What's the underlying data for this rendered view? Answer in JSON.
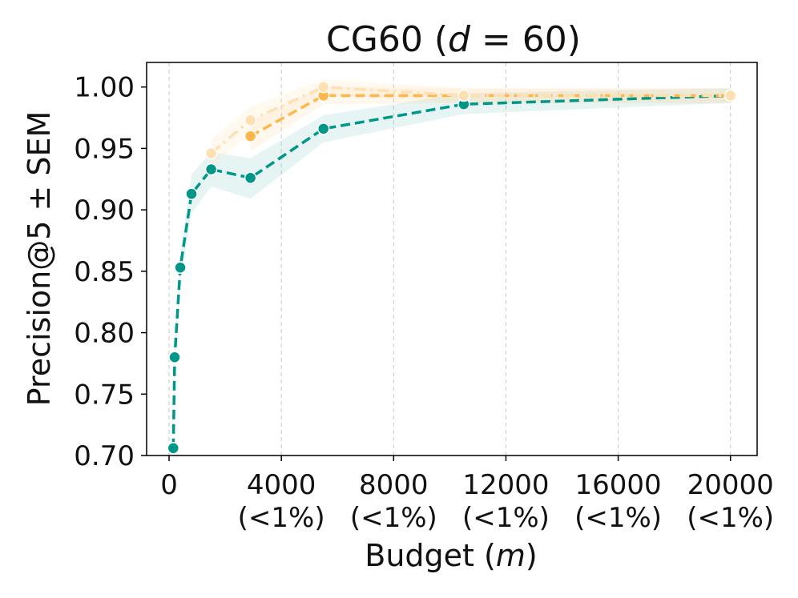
{
  "chart_data": {
    "type": "line",
    "title_prefix": "CG60 (",
    "title_var": "d",
    "title_suffix": " = 60)",
    "xlabel_prefix": "Budget (",
    "xlabel_var": "m",
    "xlabel_suffix": ")",
    "ylabel": "Precision@5 ± SEM",
    "xlim": [
      -800,
      20950
    ],
    "ylim": [
      0.7,
      1.02
    ],
    "grid_x": true,
    "x_ticks": [
      {
        "value": 0,
        "label": "0",
        "sublabel": ""
      },
      {
        "value": 4000,
        "label": "4000",
        "sublabel": "(<1%)"
      },
      {
        "value": 8000,
        "label": "8000",
        "sublabel": "(<1%)"
      },
      {
        "value": 12000,
        "label": "12000",
        "sublabel": "(<1%)"
      },
      {
        "value": 16000,
        "label": "16000",
        "sublabel": "(<1%)"
      },
      {
        "value": 20000,
        "label": "20000",
        "sublabel": "(<1%)"
      }
    ],
    "y_ticks": [
      {
        "value": 0.7,
        "label": "0.70"
      },
      {
        "value": 0.75,
        "label": "0.75"
      },
      {
        "value": 0.8,
        "label": "0.80"
      },
      {
        "value": 0.85,
        "label": "0.85"
      },
      {
        "value": 0.9,
        "label": "0.90"
      },
      {
        "value": 0.95,
        "label": "0.95"
      },
      {
        "value": 1.0,
        "label": "1.00"
      }
    ],
    "series": [
      {
        "name": "series-teal",
        "color": "#009688",
        "dash": "12,6",
        "marker_r": 7,
        "x": [
          150,
          200,
          400,
          800,
          1500,
          2900,
          5500,
          10500,
          20000
        ],
        "y": [
          0.706,
          0.78,
          0.853,
          0.913,
          0.933,
          0.926,
          0.966,
          0.986,
          0.993
        ],
        "lower": [
          0.697,
          0.765,
          0.842,
          0.897,
          0.919,
          0.909,
          0.955,
          0.978,
          0.987
        ],
        "upper": [
          0.716,
          0.795,
          0.864,
          0.929,
          0.947,
          0.942,
          0.977,
          0.995,
          0.999
        ],
        "band_color": "#80cbc4",
        "band_opacity": 0.2
      },
      {
        "name": "series-orange",
        "color": "#ffb74d",
        "dash": "12,6",
        "marker_r": 7,
        "x": [
          2900,
          5500,
          10500,
          20000
        ],
        "y": [
          0.96,
          0.993,
          0.993,
          0.993
        ],
        "lower": [
          0.948,
          0.986,
          0.987,
          0.987
        ],
        "upper": [
          0.972,
          1.0,
          0.999,
          0.999
        ],
        "band_color": "#ffcc80",
        "band_opacity": 0.15
      },
      {
        "name": "series-light-orange",
        "color": "#ffe0b2",
        "dash": "14,6,3,6",
        "marker_r": 7,
        "x": [
          1500,
          2900,
          5500,
          10500,
          20000
        ],
        "y": [
          0.946,
          0.973,
          1.0,
          0.993,
          0.993
        ],
        "lower": [
          0.935,
          0.962,
          0.994,
          0.987,
          0.987
        ],
        "upper": [
          0.957,
          0.984,
          1.006,
          0.999,
          0.999
        ],
        "band_color": "#ffe0b2",
        "band_opacity": 0.2
      }
    ]
  }
}
